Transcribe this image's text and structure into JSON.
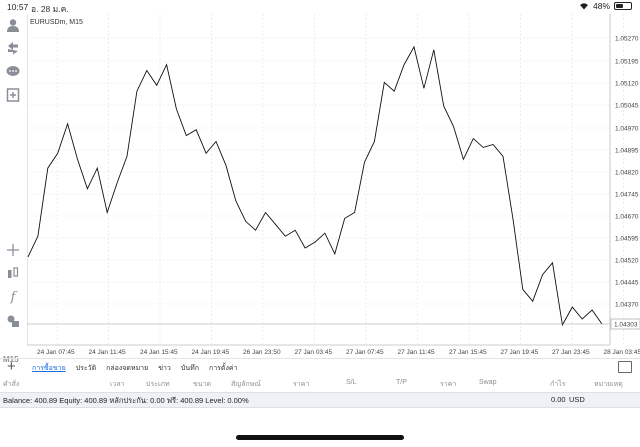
{
  "status": {
    "time": "10:57",
    "date": "อ. 28 ม.ค.",
    "battery": "48%"
  },
  "chart": {
    "symbol": "EURUSDm, M15",
    "current_price": "1.04303",
    "timeframe": "M15"
  },
  "price_axis": [
    "1.05270",
    "1.05195",
    "1.05120",
    "1.05045",
    "1.04970",
    "1.04895",
    "1.04820",
    "1.04745",
    "1.04670",
    "1.04595",
    "1.04520",
    "1.04445",
    "1.04370"
  ],
  "time_axis": [
    "24 Jan 07:45",
    "24 Jan 11:45",
    "24 Jan 15:45",
    "24 Jan 19:45",
    "26 Jan 23:50",
    "27 Jan 03:45",
    "27 Jan 07:45",
    "27 Jan 11:45",
    "27 Jan 15:45",
    "27 Jan 19:45",
    "27 Jan 23:45",
    "28 Jan 03:45"
  ],
  "chart_data": {
    "type": "line",
    "series": [
      {
        "values": [
          1.0453,
          1.046,
          1.0483,
          1.0488,
          1.0498,
          1.0486,
          1.0476,
          1.0483,
          1.0468,
          1.0478,
          1.0487,
          1.0509,
          1.0516,
          1.0511,
          1.0518,
          1.0503,
          1.0494,
          1.0496,
          1.0488,
          1.0492,
          1.0484,
          1.0472,
          1.0465,
          1.0462,
          1.0468,
          1.0464,
          1.046,
          1.0462,
          1.0456,
          1.0458,
          1.0461,
          1.0454,
          1.0466,
          1.0468,
          1.0485,
          1.0492,
          1.0512,
          1.0509,
          1.0518,
          1.0524,
          1.051,
          1.0523,
          1.0504,
          1.0497,
          1.0486,
          1.0493,
          1.049,
          1.0491,
          1.0487,
          1.0466,
          1.0442,
          1.0438,
          1.0447,
          1.0451,
          1.043,
          1.0436,
          1.0432,
          1.0435,
          1.04303
        ]
      }
    ],
    "xlim": [
      "24 Jan 07:45",
      "28 Jan 03:45"
    ],
    "ylim": [
      1.043,
      1.053
    ]
  },
  "tabs": [
    {
      "label": "การซื้อขาย",
      "active": true
    },
    {
      "label": "ประวัติ",
      "active": false
    },
    {
      "label": "กล่องจดหมาย",
      "active": false
    },
    {
      "label": "ข่าว",
      "active": false
    },
    {
      "label": "บันทึก",
      "active": false
    },
    {
      "label": "การตั้งค่า",
      "active": false
    }
  ],
  "columns": [
    "คำสั่ง",
    "เวลา",
    "ประเภท",
    "ขนาด",
    "สัญลักษณ์",
    "ราคา",
    "S/L",
    "T/P",
    "ราคา",
    "Swap",
    "กำไร",
    "หมายเหตุ"
  ],
  "balance": {
    "summary": "Balance: 400.89 Equity: 400.89 หลักประกัน: 0.00 ฟรี: 400.89 Level: 0.00%",
    "profit": "0.00",
    "currency": "USD"
  },
  "icons": [
    "user-icon",
    "switch-account-icon",
    "chat-icon",
    "add-chart-icon",
    "crosshair-icon",
    "indicators-icon",
    "function-icon",
    "objects-icon"
  ]
}
